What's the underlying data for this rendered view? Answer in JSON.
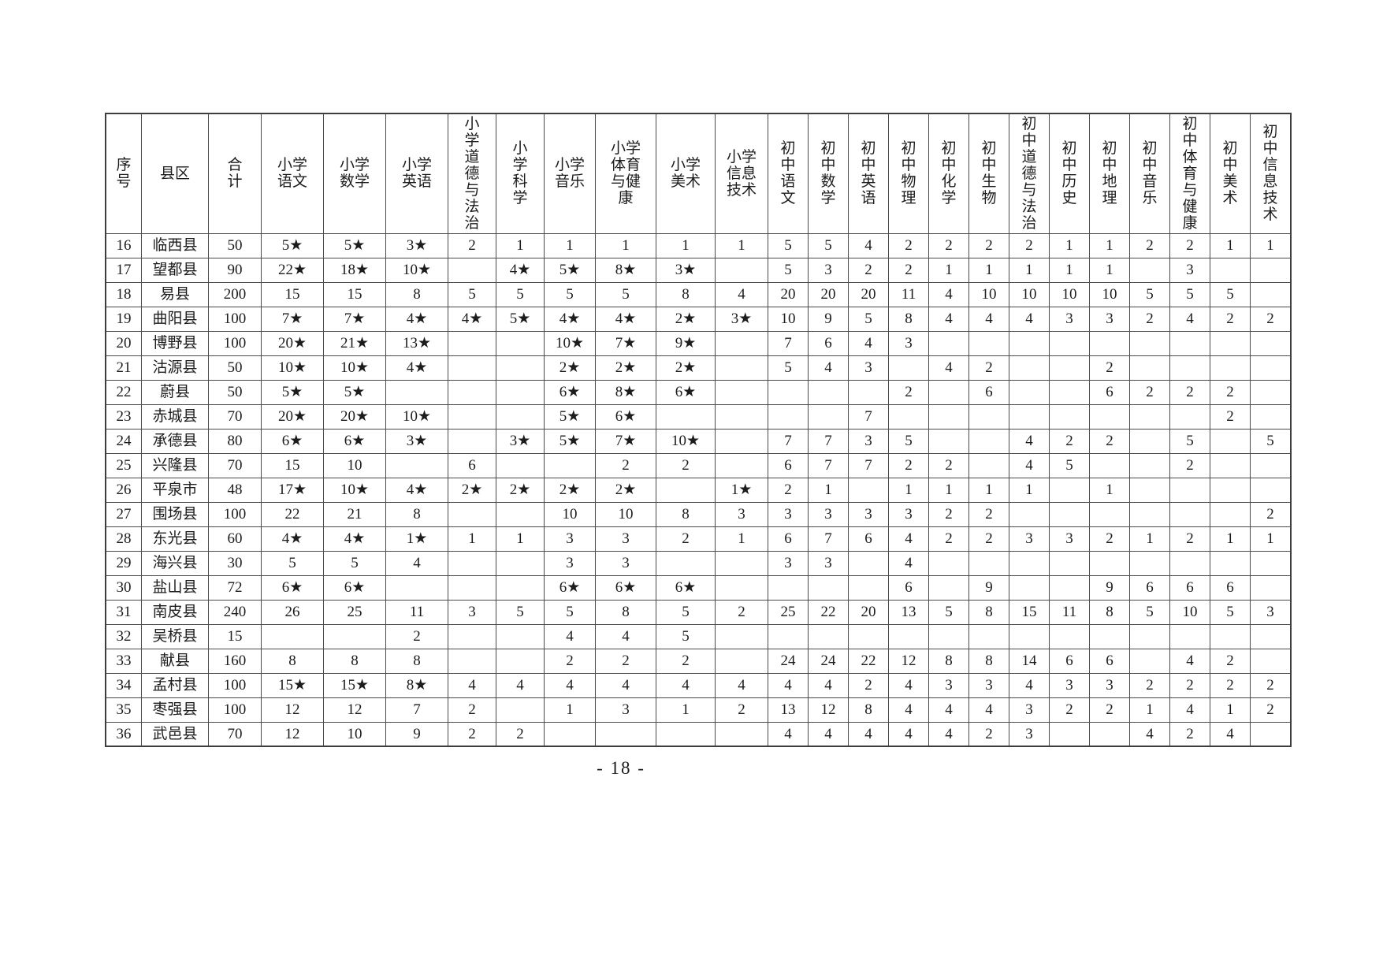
{
  "page": {
    "footer_page_number": "- 18 -"
  },
  "table": {
    "columns": [
      "序号",
      "县区",
      "合计",
      "小学语文",
      "小学数学",
      "小学英语",
      "小学道德与法治",
      "小学科学",
      "小学音乐",
      "小学体育与健康",
      "小学美术",
      "小学信息技术",
      "初中语文",
      "初中数学",
      "初中英语",
      "初中物理",
      "初中化学",
      "初中生物",
      "初中道德与法治",
      "初中历史",
      "初中地理",
      "初中音乐",
      "初中体育与健康",
      "初中美术",
      "初中信息技术"
    ],
    "rows": [
      [
        "16",
        "临西县",
        "50",
        "5★",
        "5★",
        "3★",
        "2",
        "1",
        "1",
        "1",
        "1",
        "1",
        "5",
        "5",
        "4",
        "2",
        "2",
        "2",
        "2",
        "1",
        "1",
        "2",
        "2",
        "1",
        "1"
      ],
      [
        "17",
        "望都县",
        "90",
        "22★",
        "18★",
        "10★",
        "",
        "4★",
        "5★",
        "8★",
        "3★",
        "",
        "5",
        "3",
        "2",
        "2",
        "1",
        "1",
        "1",
        "1",
        "1",
        "",
        "3",
        "",
        ""
      ],
      [
        "18",
        "易县",
        "200",
        "15",
        "15",
        "8",
        "5",
        "5",
        "5",
        "5",
        "8",
        "4",
        "20",
        "20",
        "20",
        "11",
        "4",
        "10",
        "10",
        "10",
        "10",
        "5",
        "5",
        "5",
        ""
      ],
      [
        "19",
        "曲阳县",
        "100",
        "7★",
        "7★",
        "4★",
        "4★",
        "5★",
        "4★",
        "4★",
        "2★",
        "3★",
        "10",
        "9",
        "5",
        "8",
        "4",
        "4",
        "4",
        "3",
        "3",
        "2",
        "4",
        "2",
        "2"
      ],
      [
        "20",
        "博野县",
        "100",
        "20★",
        "21★",
        "13★",
        "",
        "",
        "10★",
        "7★",
        "9★",
        "",
        "7",
        "6",
        "4",
        "3",
        "",
        "",
        "",
        "",
        "",
        "",
        "",
        "",
        ""
      ],
      [
        "21",
        "沽源县",
        "50",
        "10★",
        "10★",
        "4★",
        "",
        "",
        "2★",
        "2★",
        "2★",
        "",
        "5",
        "4",
        "3",
        "",
        "4",
        "2",
        "",
        "",
        "2",
        "",
        "",
        "",
        ""
      ],
      [
        "22",
        "蔚县",
        "50",
        "5★",
        "5★",
        "",
        "",
        "",
        "6★",
        "8★",
        "6★",
        "",
        "",
        "",
        "",
        "2",
        "",
        "6",
        "",
        "",
        "6",
        "2",
        "2",
        "2",
        ""
      ],
      [
        "23",
        "赤城县",
        "70",
        "20★",
        "20★",
        "10★",
        "",
        "",
        "5★",
        "6★",
        "",
        "",
        "",
        "",
        "7",
        "",
        "",
        "",
        "",
        "",
        "",
        "",
        "",
        "2",
        ""
      ],
      [
        "24",
        "承德县",
        "80",
        "6★",
        "6★",
        "3★",
        "",
        "3★",
        "5★",
        "7★",
        "10★",
        "",
        "7",
        "7",
        "3",
        "5",
        "",
        "",
        "4",
        "2",
        "2",
        "",
        "5",
        "",
        "5"
      ],
      [
        "25",
        "兴隆县",
        "70",
        "15",
        "10",
        "",
        "6",
        "",
        "",
        "2",
        "2",
        "",
        "6",
        "7",
        "7",
        "2",
        "2",
        "",
        "4",
        "5",
        "",
        "",
        "2",
        "",
        ""
      ],
      [
        "26",
        "平泉市",
        "48",
        "17★",
        "10★",
        "4★",
        "2★",
        "2★",
        "2★",
        "2★",
        "",
        "1★",
        "2",
        "1",
        "",
        "1",
        "1",
        "1",
        "1",
        "",
        "1",
        "",
        "",
        "",
        ""
      ],
      [
        "27",
        "围场县",
        "100",
        "22",
        "21",
        "8",
        "",
        "",
        "10",
        "10",
        "8",
        "3",
        "3",
        "3",
        "3",
        "3",
        "2",
        "2",
        "",
        "",
        "",
        "",
        "",
        "",
        "2"
      ],
      [
        "28",
        "东光县",
        "60",
        "4★",
        "4★",
        "1★",
        "1",
        "1",
        "3",
        "3",
        "2",
        "1",
        "6",
        "7",
        "6",
        "4",
        "2",
        "2",
        "3",
        "3",
        "2",
        "1",
        "2",
        "1",
        "1"
      ],
      [
        "29",
        "海兴县",
        "30",
        "5",
        "5",
        "4",
        "",
        "",
        "3",
        "3",
        "",
        "",
        "3",
        "3",
        "",
        "4",
        "",
        "",
        "",
        "",
        "",
        "",
        "",
        "",
        ""
      ],
      [
        "30",
        "盐山县",
        "72",
        "6★",
        "6★",
        "",
        "",
        "",
        "6★",
        "6★",
        "6★",
        "",
        "",
        "",
        "",
        "6",
        "",
        "9",
        "",
        "",
        "9",
        "6",
        "6",
        "6",
        ""
      ],
      [
        "31",
        "南皮县",
        "240",
        "26",
        "25",
        "11",
        "3",
        "5",
        "5",
        "8",
        "5",
        "2",
        "25",
        "22",
        "20",
        "13",
        "5",
        "8",
        "15",
        "11",
        "8",
        "5",
        "10",
        "5",
        "3"
      ],
      [
        "32",
        "吴桥县",
        "15",
        "",
        "",
        "2",
        "",
        "",
        "4",
        "4",
        "5",
        "",
        "",
        "",
        "",
        "",
        "",
        "",
        "",
        "",
        "",
        "",
        "",
        "",
        ""
      ],
      [
        "33",
        "献县",
        "160",
        "8",
        "8",
        "8",
        "",
        "",
        "2",
        "2",
        "2",
        "",
        "24",
        "24",
        "22",
        "12",
        "8",
        "8",
        "14",
        "6",
        "6",
        "",
        "4",
        "2",
        ""
      ],
      [
        "34",
        "孟村县",
        "100",
        "15★",
        "15★",
        "8★",
        "4",
        "4",
        "4",
        "4",
        "4",
        "4",
        "4",
        "4",
        "2",
        "4",
        "3",
        "3",
        "4",
        "3",
        "3",
        "2",
        "2",
        "2",
        "2"
      ],
      [
        "35",
        "枣强县",
        "100",
        "12",
        "12",
        "7",
        "2",
        "",
        "1",
        "3",
        "1",
        "2",
        "13",
        "12",
        "8",
        "4",
        "4",
        "4",
        "3",
        "2",
        "2",
        "1",
        "4",
        "1",
        "2"
      ],
      [
        "36",
        "武邑县",
        "70",
        "12",
        "10",
        "9",
        "2",
        "2",
        "",
        "",
        "",
        "",
        "4",
        "4",
        "4",
        "4",
        "4",
        "2",
        "3",
        "",
        "",
        "4",
        "2",
        "4",
        ""
      ]
    ]
  }
}
